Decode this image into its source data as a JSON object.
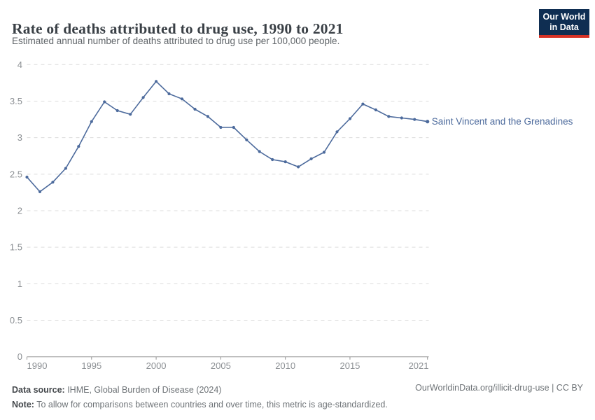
{
  "header": {
    "title": "Rate of deaths attributed to drug use, 1990 to 2021",
    "subtitle": "Estimated annual number of deaths attributed to drug use per 100,000 people.",
    "logo_line1": "Our World",
    "logo_line2": "in Data"
  },
  "chart_data": {
    "type": "line",
    "title": "Rate of deaths attributed to drug use, 1990 to 2021",
    "x": [
      1990,
      1991,
      1992,
      1993,
      1994,
      1995,
      1996,
      1997,
      1998,
      1999,
      2000,
      2001,
      2002,
      2003,
      2004,
      2005,
      2006,
      2007,
      2008,
      2009,
      2010,
      2011,
      2012,
      2013,
      2014,
      2015,
      2016,
      2017,
      2018,
      2019,
      2020,
      2021
    ],
    "series": [
      {
        "name": "Saint Vincent and the Grenadines",
        "values": [
          2.46,
          2.26,
          2.39,
          2.58,
          2.88,
          3.22,
          3.49,
          3.37,
          3.32,
          3.55,
          3.77,
          3.6,
          3.53,
          3.39,
          3.29,
          3.14,
          3.14,
          2.97,
          2.81,
          2.7,
          2.67,
          2.6,
          2.71,
          2.8,
          3.08,
          3.26,
          3.46,
          3.38,
          3.29,
          3.27,
          3.25,
          3.22
        ],
        "color": "#4c6a9c"
      }
    ],
    "xlabel": "",
    "ylabel": "",
    "ylim": [
      0,
      4
    ],
    "yticks": [
      0,
      0.5,
      1,
      1.5,
      2,
      2.5,
      3,
      3.5,
      4
    ],
    "xticks": [
      1990,
      1995,
      2000,
      2005,
      2010,
      2015,
      2021
    ],
    "grid": "horizontal-dashed",
    "legend_position": "end-of-line-label"
  },
  "footer": {
    "datasource_label": "Data source:",
    "datasource_value": " IHME, Global Burden of Disease (2024)",
    "note_label": "Note:",
    "note_value": " To allow for comparisons between countries and over time, this metric is age-standardized.",
    "link": "OurWorldinData.org/illicit-drug-use | CC BY"
  },
  "colors": {
    "line": "#4c6a9c",
    "series_label": "#4c6a9c",
    "grid": "#dcdcdc",
    "axis": "#949494",
    "tick_label": "#8b8f93",
    "title": "#3a4046",
    "subtitle": "#5f6468",
    "logo_bg": "#0f2e52",
    "logo_accent": "#d63226"
  }
}
